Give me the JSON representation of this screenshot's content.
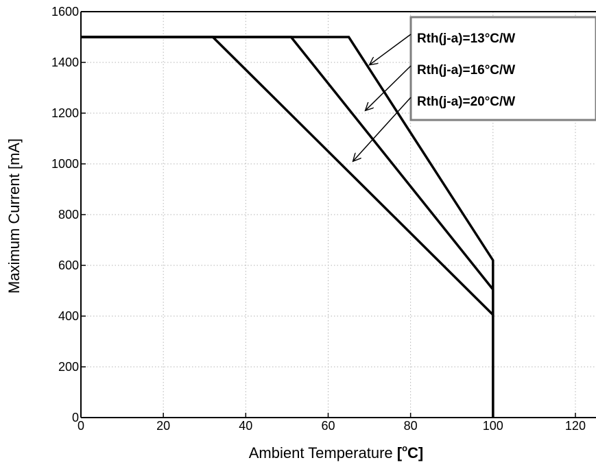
{
  "chart_data": {
    "type": "line",
    "title": "",
    "xlabel_prefix": "Ambient Temperature ",
    "xlabel_unit_open": "[",
    "xlabel_unit_degree": "o",
    "xlabel_unit_rest": "C]",
    "ylabel": "Maximum Current [mA]",
    "xlim": [
      0,
      125
    ],
    "ylim": [
      0,
      1600
    ],
    "xticks": [
      0,
      20,
      40,
      60,
      80,
      100,
      120
    ],
    "yticks": [
      0,
      200,
      400,
      600,
      800,
      1000,
      1200,
      1400,
      1600
    ],
    "grid": true,
    "series": [
      {
        "name": "Rth(j-a)=13°C/W",
        "x": [
          0,
          65,
          100,
          100
        ],
        "y": [
          1500,
          1500,
          620,
          0
        ]
      },
      {
        "name": "Rth(j-a)=16°C/W",
        "x": [
          0,
          51,
          100,
          100
        ],
        "y": [
          1500,
          1500,
          505,
          0
        ]
      },
      {
        "name": "Rth(j-a)=20°C/W",
        "x": [
          0,
          32,
          100,
          100
        ],
        "y": [
          1500,
          1500,
          405,
          0
        ]
      }
    ],
    "legend_position": "top-right",
    "annotations": [
      {
        "series": 0,
        "x": 70,
        "y": 1390
      },
      {
        "series": 1,
        "x": 69,
        "y": 1210
      },
      {
        "series": 2,
        "x": 66,
        "y": 1010
      }
    ]
  }
}
